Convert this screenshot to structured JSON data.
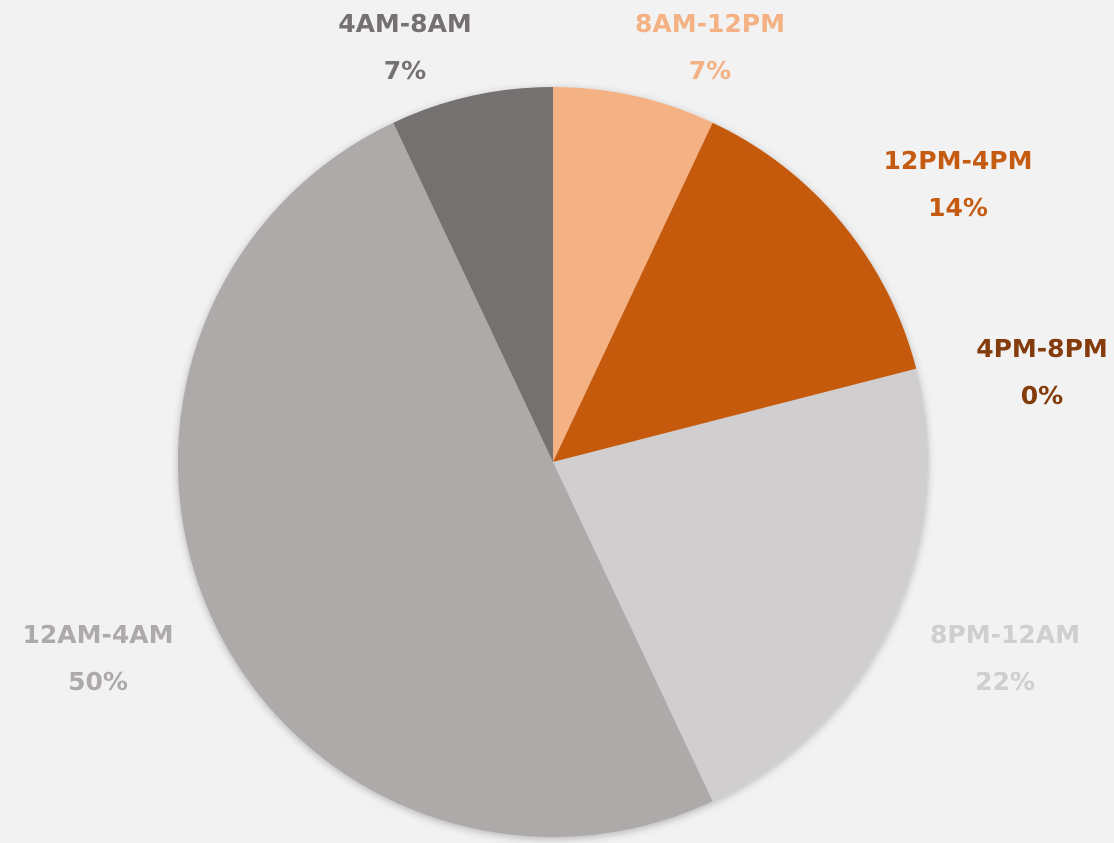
{
  "chart_data": {
    "type": "pie",
    "categories": [
      "8AM-12PM",
      "12PM-4PM",
      "4PM-8PM",
      "8PM-12AM",
      "12AM-4AM",
      "4AM-8AM"
    ],
    "values": [
      7,
      14,
      0,
      22,
      50,
      7
    ],
    "value_labels": [
      "7%",
      "14%",
      "0%",
      "22%",
      "50%",
      "7%"
    ],
    "colors": [
      "#f4b183",
      "#c55a11",
      "#843c0c",
      "#d0cece",
      "#aeaaaa",
      "#767171"
    ]
  }
}
